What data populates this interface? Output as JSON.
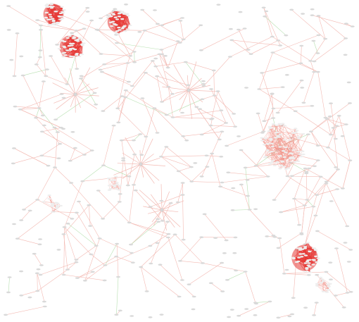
{
  "colors": {
    "background": "#ffffff",
    "edge_light": "#f3b9b2",
    "edge_green": "#b7e0b0",
    "node": "#d9d9d9",
    "node_stroke": "#bdbdbd",
    "cluster_fill": "#e53935",
    "cluster_fill_light": "#f28b82",
    "cluster_node": "#eeeeee"
  },
  "diagram": {
    "type": "network-graph",
    "clusters": [
      {
        "id": "c1",
        "intensity": "dense"
      },
      {
        "id": "c2",
        "intensity": "dense"
      },
      {
        "id": "c3",
        "intensity": "dense"
      },
      {
        "id": "c4",
        "intensity": "medium"
      },
      {
        "id": "c5",
        "intensity": "dense"
      },
      {
        "id": "c6",
        "intensity": "light"
      },
      {
        "id": "c7",
        "intensity": "light"
      },
      {
        "id": "c8",
        "intensity": "light"
      }
    ],
    "hubs": [
      {
        "id": "h1"
      },
      {
        "id": "h2"
      },
      {
        "id": "h3"
      },
      {
        "id": "h4"
      }
    ]
  }
}
